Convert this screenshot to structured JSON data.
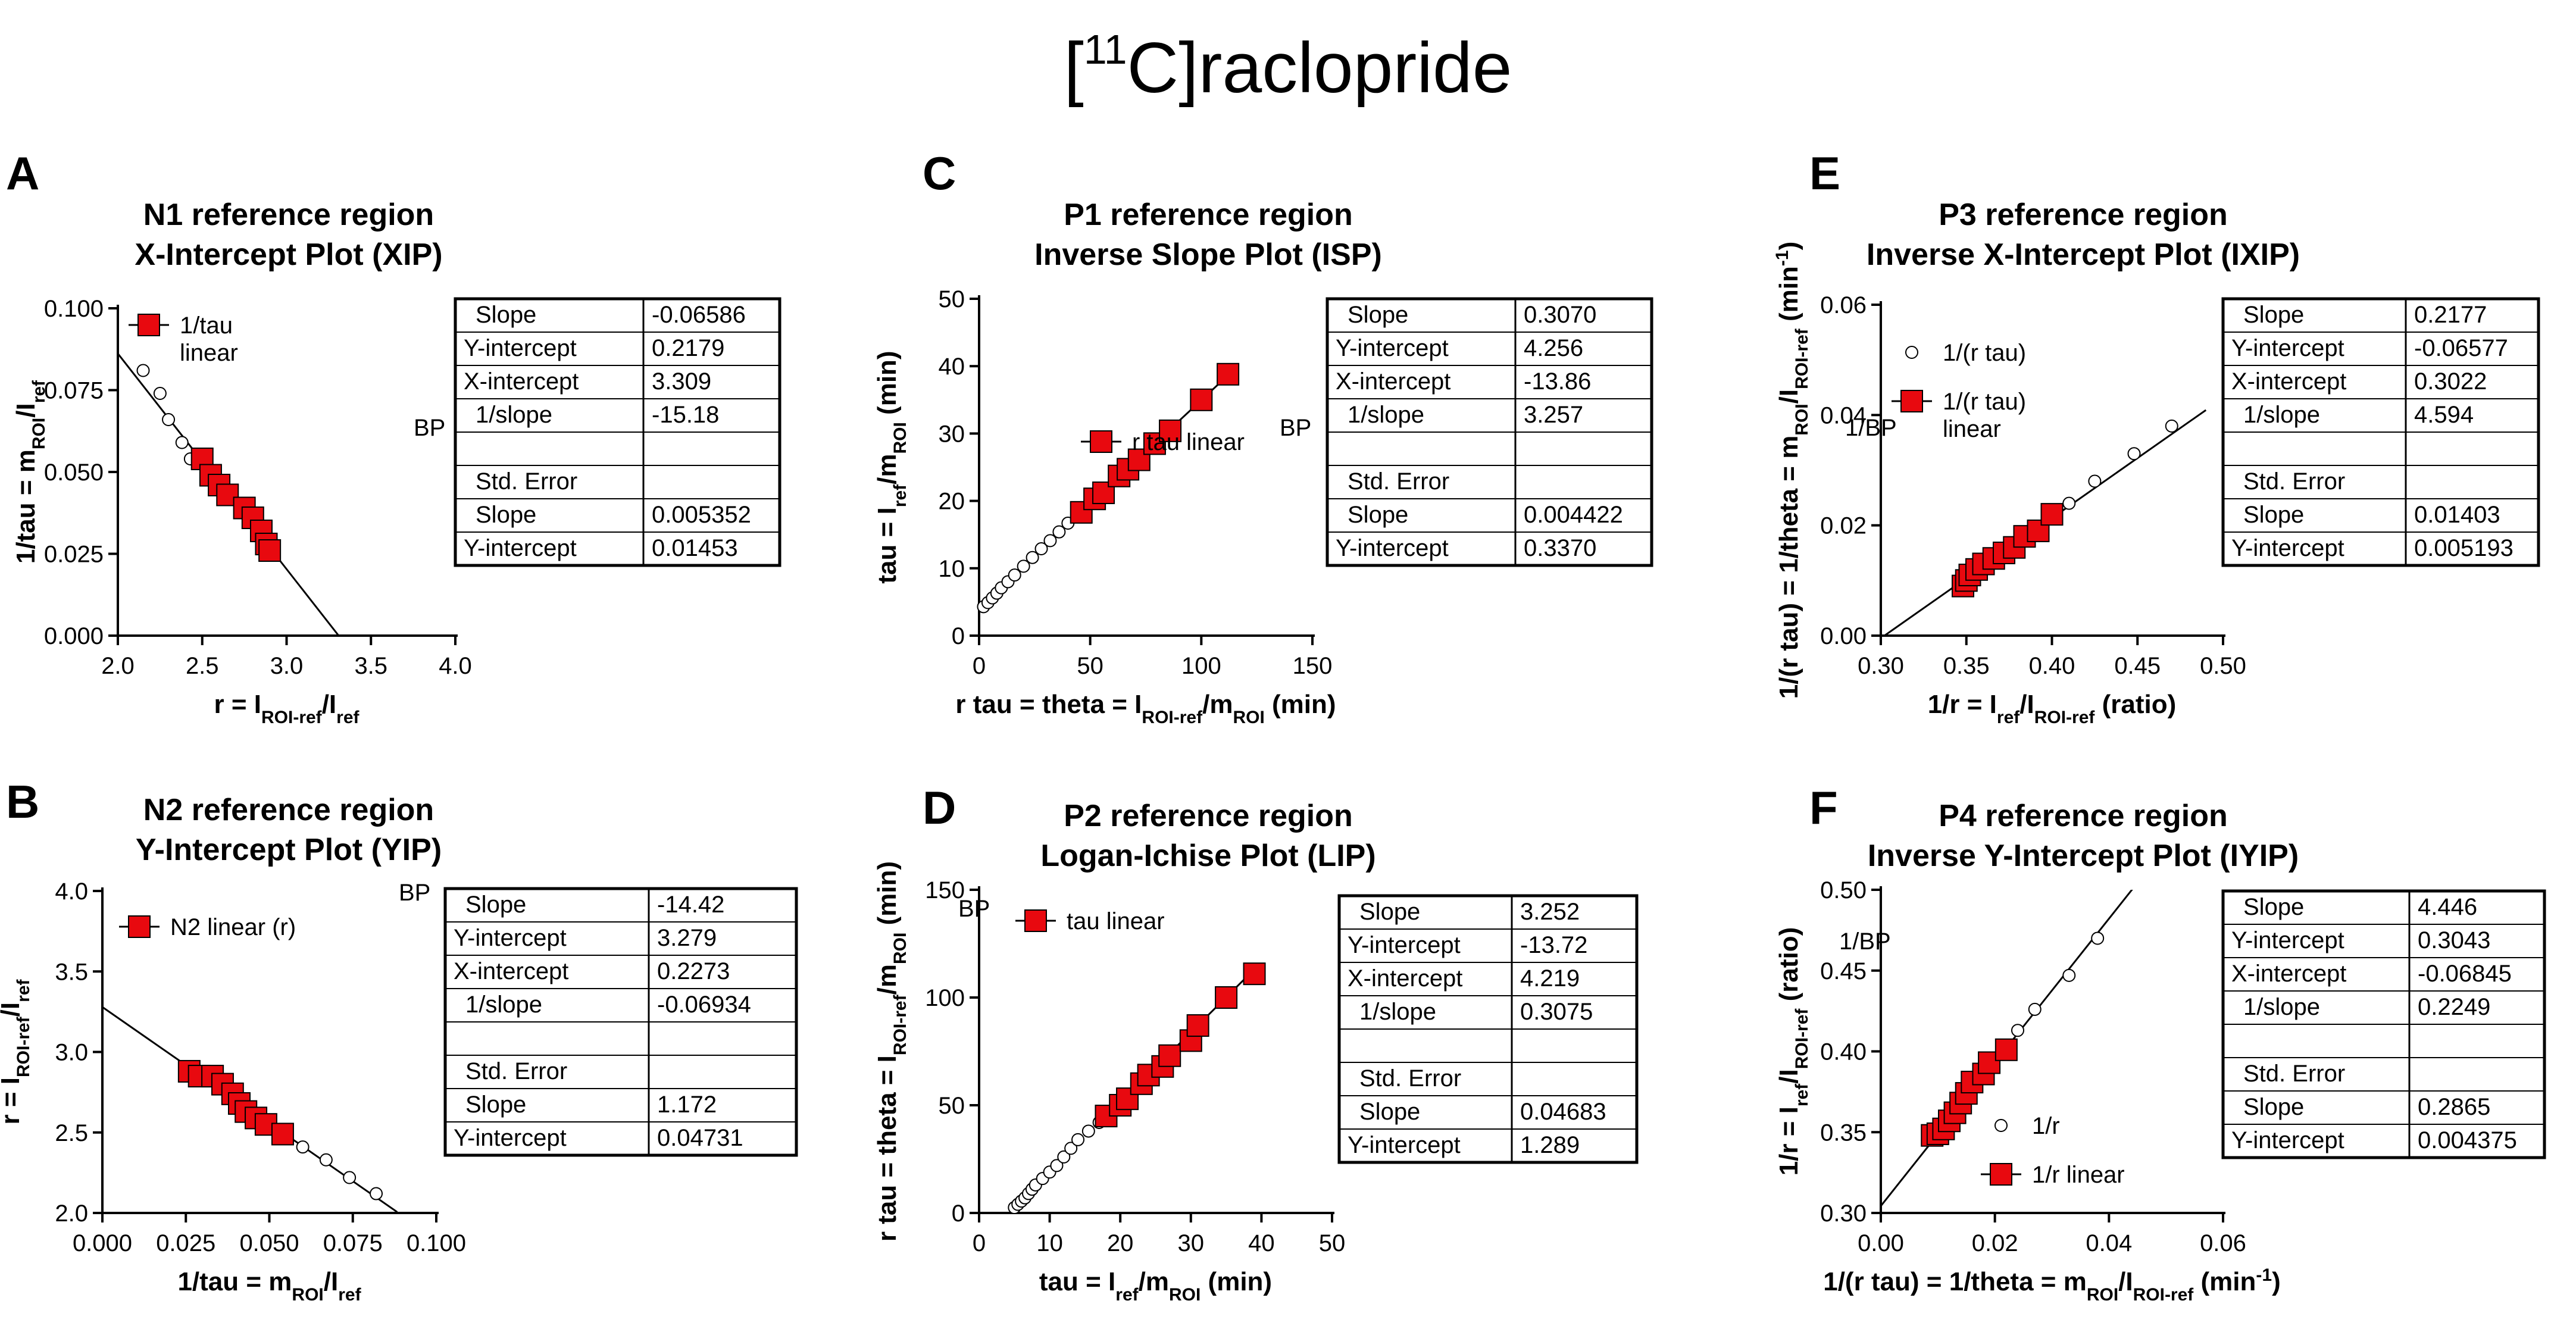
{
  "figure": {
    "title": {
      "open": "[",
      "isotope_mass": "11",
      "element": "C",
      "compound": "]raclopride"
    }
  },
  "colors": {
    "fit_marker": "#e8090f",
    "marker_edge": "#000000",
    "line": "#000000",
    "background": "#ffffff"
  },
  "chart_data": [
    {
      "id": "A",
      "panel_letter": "A",
      "type": "scatter",
      "title": [
        "N1 reference region",
        "X-Intercept Plot (XIP)"
      ],
      "xlabel": [
        [
          "r = I"
        ],
        [
          "ROI-ref",
          "sub"
        ],
        [
          "/I"
        ],
        [
          "ref",
          "sub"
        ]
      ],
      "ylabel": [
        [
          "1/tau = m"
        ],
        [
          "ROI",
          "sub"
        ],
        [
          "/I"
        ],
        [
          "ref",
          "sub"
        ]
      ],
      "xlim": [
        2.0,
        4.0
      ],
      "ylim": [
        0.0,
        0.1
      ],
      "xticks": [
        "2.0",
        "2.5",
        "3.0",
        "3.5",
        "4.0"
      ],
      "yticks": [
        "0.000",
        "0.025",
        "0.050",
        "0.075",
        "0.100"
      ],
      "open_points": [
        [
          2.15,
          0.081
        ],
        [
          2.25,
          0.074
        ],
        [
          2.3,
          0.066
        ],
        [
          2.38,
          0.059
        ],
        [
          2.43,
          0.054
        ]
      ],
      "fit_points": [
        [
          2.5,
          0.054
        ],
        [
          2.55,
          0.049
        ],
        [
          2.6,
          0.046
        ],
        [
          2.65,
          0.043
        ],
        [
          2.75,
          0.039
        ],
        [
          2.8,
          0.036
        ],
        [
          2.85,
          0.032
        ],
        [
          2.88,
          0.028
        ],
        [
          2.9,
          0.026
        ]
      ],
      "fit_line": {
        "slope": -0.06586,
        "intercept": 0.2179,
        "x_range": [
          2.0,
          3.309
        ]
      },
      "legend": [
        {
          "label": [
            "1/tau",
            "linear"
          ],
          "marker": "filled-square"
        }
      ],
      "side_label": "BP",
      "table": [
        [
          "Slope",
          "-0.06586"
        ],
        [
          "Y-intercept",
          "0.2179"
        ],
        [
          "X-intercept",
          "3.309"
        ],
        [
          "1/slope",
          "-15.18"
        ],
        [
          "",
          ""
        ],
        [
          "Std. Error",
          ""
        ],
        [
          "Slope",
          "0.005352"
        ],
        [
          "Y-intercept",
          "0.01453"
        ]
      ]
    },
    {
      "id": "B",
      "panel_letter": "B",
      "type": "scatter",
      "title": [
        "N2 reference region",
        "Y-Intercept Plot (YIP)"
      ],
      "xlabel": [
        [
          "1/tau = m"
        ],
        [
          "ROI",
          "sub"
        ],
        [
          "/I"
        ],
        [
          "ref",
          "sub"
        ]
      ],
      "ylabel": [
        [
          "r = I"
        ],
        [
          "ROI-ref",
          "sub"
        ],
        [
          "/I"
        ],
        [
          "ref",
          "sub"
        ]
      ],
      "xlim": [
        0.0,
        0.1
      ],
      "ylim": [
        2.0,
        4.0
      ],
      "xticks": [
        "0.000",
        "0.025",
        "0.050",
        "0.075",
        "0.100"
      ],
      "yticks": [
        "2.0",
        "2.5",
        "3.0",
        "3.5",
        "4.0"
      ],
      "open_points": [
        [
          0.06,
          2.41
        ],
        [
          0.067,
          2.33
        ],
        [
          0.074,
          2.22
        ],
        [
          0.082,
          2.12
        ]
      ],
      "fit_points": [
        [
          0.026,
          2.88
        ],
        [
          0.029,
          2.85
        ],
        [
          0.033,
          2.85
        ],
        [
          0.036,
          2.8
        ],
        [
          0.039,
          2.74
        ],
        [
          0.041,
          2.68
        ],
        [
          0.043,
          2.63
        ],
        [
          0.046,
          2.59
        ],
        [
          0.049,
          2.55
        ],
        [
          0.054,
          2.49
        ]
      ],
      "fit_line": {
        "slope": -14.42,
        "intercept": 3.279,
        "x_range": [
          0.0,
          0.0883
        ]
      },
      "legend": [
        {
          "label": [
            "N2 linear (r)"
          ],
          "marker": "filled-square"
        }
      ],
      "side_label": "BP",
      "table": [
        [
          "Slope",
          "-14.42"
        ],
        [
          "Y-intercept",
          "3.279"
        ],
        [
          "X-intercept",
          "0.2273"
        ],
        [
          "1/slope",
          "-0.06934"
        ],
        [
          "",
          ""
        ],
        [
          "Std. Error",
          ""
        ],
        [
          "Slope",
          "1.172"
        ],
        [
          "Y-intercept",
          "0.04731"
        ]
      ]
    },
    {
      "id": "C",
      "panel_letter": "C",
      "type": "scatter",
      "title": [
        "P1 reference region",
        "Inverse Slope Plot (ISP)"
      ],
      "xlabel": [
        [
          "r tau = theta = I"
        ],
        [
          "ROI-ref",
          "sub"
        ],
        [
          "/m"
        ],
        [
          "ROI",
          "sub"
        ],
        [
          " (min)"
        ]
      ],
      "ylabel": [
        [
          "tau = I"
        ],
        [
          "ref",
          "sub"
        ],
        [
          "/m"
        ],
        [
          "ROI",
          "sub"
        ],
        [
          " (min)"
        ]
      ],
      "xlim": [
        0,
        150
      ],
      "ylim": [
        0,
        50
      ],
      "xticks": [
        "0",
        "50",
        "100",
        "150"
      ],
      "yticks": [
        "0",
        "10",
        "20",
        "30",
        "40",
        "50"
      ],
      "open_points": [
        [
          2,
          4.3
        ],
        [
          4,
          4.9
        ],
        [
          6,
          5.6
        ],
        [
          8,
          6.3
        ],
        [
          10,
          7.1
        ],
        [
          13,
          8.0
        ],
        [
          16,
          9.0
        ],
        [
          20,
          10.3
        ],
        [
          24,
          11.6
        ],
        [
          28,
          12.9
        ],
        [
          32,
          14.1
        ],
        [
          36,
          15.4
        ],
        [
          40,
          16.7
        ]
      ],
      "fit_points": [
        [
          46,
          18.3
        ],
        [
          52,
          20.3
        ],
        [
          56,
          21.2
        ],
        [
          63,
          23.7
        ],
        [
          67,
          24.7
        ],
        [
          72,
          26.1
        ],
        [
          79,
          28.5
        ],
        [
          86,
          30.4
        ],
        [
          100,
          35.0
        ],
        [
          112,
          38.8
        ]
      ],
      "fit_line": {
        "slope": 0.307,
        "intercept": 4.256,
        "x_range": [
          46,
          112
        ]
      },
      "legend": [
        {
          "label": [
            "r tau linear"
          ],
          "marker": "filled-square"
        }
      ],
      "side_label": "BP",
      "table": [
        [
          "Slope",
          "0.3070"
        ],
        [
          "Y-intercept",
          "4.256"
        ],
        [
          "X-intercept",
          "-13.86"
        ],
        [
          "1/slope",
          "3.257"
        ],
        [
          "",
          ""
        ],
        [
          "Std. Error",
          ""
        ],
        [
          "Slope",
          "0.004422"
        ],
        [
          "Y-intercept",
          "0.3370"
        ]
      ]
    },
    {
      "id": "D",
      "panel_letter": "D",
      "type": "scatter",
      "title": [
        "P2 reference region",
        "Logan-Ichise Plot (LIP)"
      ],
      "xlabel": [
        [
          "tau = I"
        ],
        [
          "ref",
          "sub"
        ],
        [
          "/m"
        ],
        [
          "ROI",
          "sub"
        ],
        [
          " (min)"
        ]
      ],
      "ylabel": [
        [
          "r tau = theta = I"
        ],
        [
          "ROI-ref",
          "sub"
        ],
        [
          "/m"
        ],
        [
          "ROI",
          "sub"
        ],
        [
          " (min)"
        ]
      ],
      "xlim": [
        0,
        50
      ],
      "ylim": [
        0,
        150
      ],
      "xticks": [
        "0",
        "10",
        "20",
        "30",
        "40",
        "50"
      ],
      "yticks": [
        "0",
        "50",
        "100",
        "150"
      ],
      "open_points": [
        [
          5,
          2.5
        ],
        [
          5.5,
          4
        ],
        [
          6,
          5.5
        ],
        [
          6.5,
          7
        ],
        [
          7,
          9
        ],
        [
          7.5,
          11
        ],
        [
          8,
          13
        ],
        [
          9,
          16
        ],
        [
          10,
          19
        ],
        [
          11,
          22
        ],
        [
          12,
          26
        ],
        [
          13,
          30
        ],
        [
          14,
          34
        ],
        [
          15.5,
          38
        ],
        [
          17,
          42
        ]
      ],
      "fit_points": [
        [
          18,
          45
        ],
        [
          20,
          50
        ],
        [
          21,
          53
        ],
        [
          23,
          60
        ],
        [
          24,
          64
        ],
        [
          26,
          68
        ],
        [
          27,
          73
        ],
        [
          30,
          80
        ],
        [
          31,
          87
        ],
        [
          35,
          100
        ],
        [
          39,
          111
        ]
      ],
      "fit_line": {
        "slope": 3.252,
        "intercept": -13.72,
        "x_range": [
          17,
          39
        ]
      },
      "legend": [
        {
          "label": [
            "tau linear"
          ],
          "marker": "filled-square"
        }
      ],
      "side_label": "BP",
      "table": [
        [
          "Slope",
          "3.252"
        ],
        [
          "Y-intercept",
          "-13.72"
        ],
        [
          "X-intercept",
          "4.219"
        ],
        [
          "1/slope",
          "0.3075"
        ],
        [
          "",
          ""
        ],
        [
          "Std. Error",
          ""
        ],
        [
          "Slope",
          "0.04683"
        ],
        [
          "Y-intercept",
          "1.289"
        ]
      ]
    },
    {
      "id": "E",
      "panel_letter": "E",
      "type": "scatter",
      "title": [
        "P3 reference region",
        "Inverse X-Intercept Plot (IXIP)"
      ],
      "xlabel": [
        [
          "1/r = I"
        ],
        [
          "ref",
          "sub"
        ],
        [
          "/I"
        ],
        [
          "ROI-ref",
          "sub"
        ],
        [
          " (ratio)"
        ]
      ],
      "ylabel": [
        [
          "1/(r tau) = 1/theta = m"
        ],
        [
          "ROI",
          "sub"
        ],
        [
          "/I"
        ],
        [
          "ROI-ref",
          "sub"
        ],
        [
          " (min"
        ],
        [
          "-1",
          "sup"
        ],
        [
          ")"
        ]
      ],
      "xlim": [
        0.3,
        0.5
      ],
      "ylim": [
        0.0,
        0.06
      ],
      "xticks": [
        "0.30",
        "0.35",
        "0.40",
        "0.45",
        "0.50"
      ],
      "yticks": [
        "0.00",
        "0.02",
        "0.04",
        "0.06"
      ],
      "open_points": [
        [
          0.41,
          0.024
        ],
        [
          0.425,
          0.028
        ],
        [
          0.448,
          0.033
        ],
        [
          0.47,
          0.038
        ]
      ],
      "fit_points": [
        [
          0.348,
          0.009
        ],
        [
          0.35,
          0.01
        ],
        [
          0.352,
          0.011
        ],
        [
          0.356,
          0.012
        ],
        [
          0.36,
          0.013
        ],
        [
          0.366,
          0.014
        ],
        [
          0.372,
          0.015
        ],
        [
          0.378,
          0.016
        ],
        [
          0.384,
          0.018
        ],
        [
          0.392,
          0.019
        ],
        [
          0.4,
          0.022
        ]
      ],
      "fit_line": {
        "slope": 0.2177,
        "intercept": -0.06577,
        "x_range": [
          0.3022,
          0.49
        ]
      },
      "legend": [
        {
          "label": [
            "1/(r tau)"
          ],
          "marker": "open-circle"
        },
        {
          "label": [
            "1/(r tau)",
            "linear"
          ],
          "marker": "filled-square"
        }
      ],
      "side_label": "1/BP",
      "table": [
        [
          "Slope",
          "0.2177"
        ],
        [
          "Y-intercept",
          "-0.06577"
        ],
        [
          "X-intercept",
          "0.3022"
        ],
        [
          "1/slope",
          "4.594"
        ],
        [
          "",
          ""
        ],
        [
          "Std. Error",
          ""
        ],
        [
          "Slope",
          "0.01403"
        ],
        [
          "Y-intercept",
          "0.005193"
        ]
      ]
    },
    {
      "id": "F",
      "panel_letter": "F",
      "type": "scatter",
      "title": [
        "P4 reference region",
        "Inverse Y-Intercept Plot (IYIP)"
      ],
      "xlabel": [
        [
          "1/(r tau) = 1/theta = m"
        ],
        [
          "ROI",
          "sub"
        ],
        [
          "/I"
        ],
        [
          "ROI-ref",
          "sub"
        ],
        [
          " (min"
        ],
        [
          "-1",
          "sup"
        ],
        [
          ")"
        ]
      ],
      "ylabel": [
        [
          "1/r = I"
        ],
        [
          "ref",
          "sub"
        ],
        [
          "/I"
        ],
        [
          "ROI-ref",
          "sub"
        ],
        [
          " (ratio)"
        ]
      ],
      "xlim": [
        0.0,
        0.06
      ],
      "ylim": [
        0.3,
        0.5
      ],
      "xticks": [
        "0.00",
        "0.02",
        "0.04",
        "0.06"
      ],
      "yticks": [
        "0.30",
        "0.35",
        "0.40",
        "0.45",
        "0.50"
      ],
      "open_points": [
        [
          0.024,
          0.413
        ],
        [
          0.027,
          0.426
        ],
        [
          0.033,
          0.447
        ],
        [
          0.038,
          0.47
        ]
      ],
      "fit_points": [
        [
          0.009,
          0.348
        ],
        [
          0.01,
          0.349
        ],
        [
          0.011,
          0.352
        ],
        [
          0.012,
          0.357
        ],
        [
          0.013,
          0.362
        ],
        [
          0.014,
          0.368
        ],
        [
          0.015,
          0.374
        ],
        [
          0.016,
          0.381
        ],
        [
          0.018,
          0.386
        ],
        [
          0.019,
          0.393
        ],
        [
          0.022,
          0.401
        ]
      ],
      "fit_line": {
        "slope": 4.446,
        "intercept": 0.3043,
        "x_range": [
          0.0,
          0.0445
        ]
      },
      "legend": [
        {
          "label": [
            "1/r"
          ],
          "marker": "open-circle"
        },
        {
          "label": [
            "1/r linear"
          ],
          "marker": "filled-square"
        }
      ],
      "side_label": "1/BP",
      "table": [
        [
          "Slope",
          "4.446"
        ],
        [
          "Y-intercept",
          "0.3043"
        ],
        [
          "X-intercept",
          "-0.06845"
        ],
        [
          "1/slope",
          "0.2249"
        ],
        [
          "",
          ""
        ],
        [
          "Std. Error",
          ""
        ],
        [
          "Slope",
          "0.2865"
        ],
        [
          "Y-intercept",
          "0.004375"
        ]
      ]
    }
  ]
}
